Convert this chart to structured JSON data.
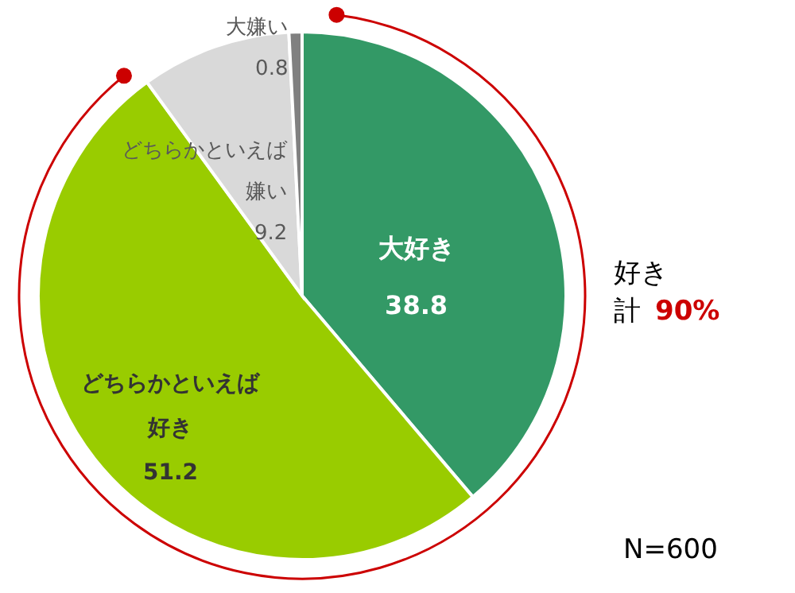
{
  "chart_data": {
    "type": "pie",
    "categories": [
      "大好き",
      "どちらかといえば好き",
      "どちらかといえば嫌い",
      "大嫌い"
    ],
    "values": [
      38.8,
      51.2,
      9.2,
      0.8
    ],
    "colors": [
      "#339966",
      "#99cc00",
      "#d9d9d9",
      "#808080"
    ],
    "data_labels": true,
    "annotations": [
      "好き計",
      "90%",
      "N=600"
    ]
  }
}
